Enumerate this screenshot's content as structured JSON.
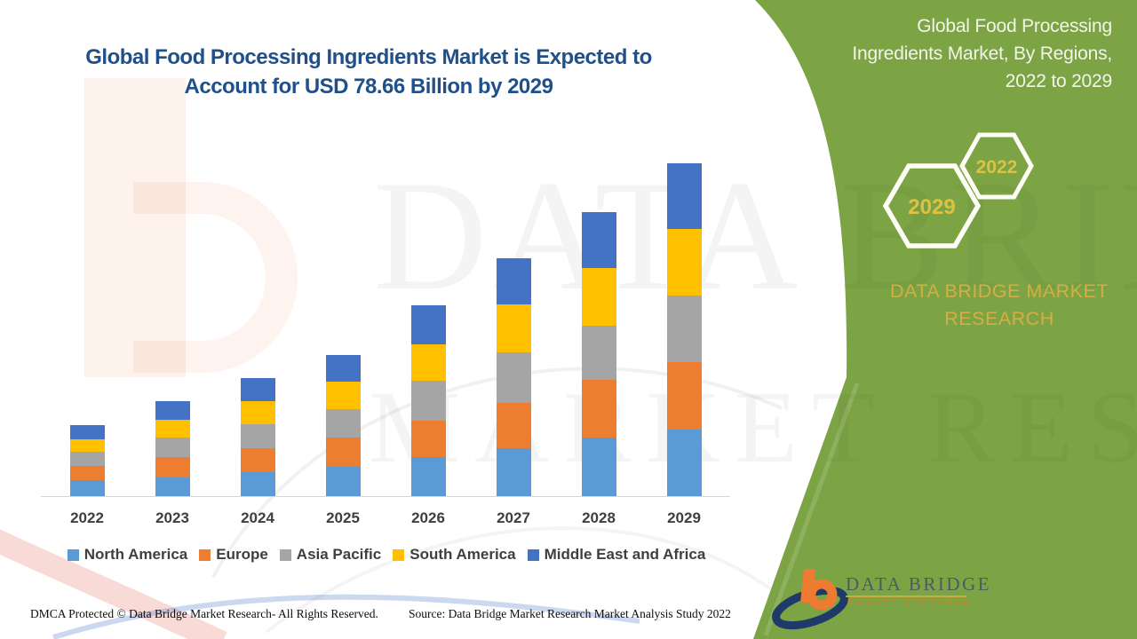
{
  "colors": {
    "panel_green": "#7CA444",
    "headline_blue": "#20508A",
    "gold": "#DCC244",
    "brand_gold": "#D4AE45",
    "legend_text": "#3F3F3F",
    "axis_line": "#D6D6D6"
  },
  "header": {
    "title_line1": "Global Food Processing Ingredients Market is Expected to",
    "title_line2": "Account for USD 78.66 Billion by 2029"
  },
  "right_panel": {
    "title_line1": "Global Food Processing",
    "title_line2": "Ingredients Market, By Regions,",
    "title_line3": "2022 to 2029",
    "hexagon_front_label": "2029",
    "hexagon_back_label": "2022",
    "brand_line1": "DATA BRIDGE MARKET",
    "brand_line2": "RESEARCH"
  },
  "watermark": {
    "line1": "DATA BRIDGE",
    "line2": "MARKET RESEARCH"
  },
  "logo": {
    "title": "DATA BRIDGE",
    "subtitle": "MARKET RESEARCH"
  },
  "footer": {
    "dmca": "DMCA Protected © Data Bridge Market Research- All Rights Reserved.",
    "source": "Source: Data Bridge Market Research Market Analysis Study 2022"
  },
  "chart_data": {
    "type": "bar",
    "stacked": true,
    "unit": "USD Billion",
    "title": "Global Food Processing Ingredients Market, By Regions, 2022 to 2029",
    "xlabel": "",
    "ylabel": "",
    "grid": false,
    "legend_position": "bottom",
    "axis_labels_visible": false,
    "annotation_total_2029": 78.66,
    "categories": [
      "2022",
      "2023",
      "2024",
      "2025",
      "2026",
      "2027",
      "2028",
      "2029"
    ],
    "totals": [
      16.8,
      22.5,
      28.0,
      33.3,
      45.0,
      56.1,
      67.2,
      78.66
    ],
    "series": [
      {
        "name": "North America",
        "color": "#5B9BD5",
        "values": [
          3.7,
          4.4,
          5.7,
          6.9,
          9.3,
          11.3,
          13.8,
          15.7
        ]
      },
      {
        "name": "Europe",
        "color": "#ED7D31",
        "values": [
          3.5,
          4.9,
          5.7,
          7.0,
          8.6,
          10.8,
          13.6,
          15.9
        ]
      },
      {
        "name": "Asia Pacific",
        "color": "#A5A5A5",
        "values": [
          3.2,
          4.5,
          5.5,
          6.6,
          9.4,
          11.9,
          12.9,
          15.8
        ]
      },
      {
        "name": "South America",
        "color": "#FFC000",
        "values": [
          3.1,
          4.3,
          5.6,
          6.6,
          8.5,
          11.2,
          13.6,
          15.7
        ]
      },
      {
        "name": "Middle East and Africa",
        "color": "#4472C4",
        "values": [
          3.3,
          4.4,
          5.5,
          6.2,
          9.2,
          10.9,
          13.3,
          15.56
        ]
      }
    ]
  }
}
